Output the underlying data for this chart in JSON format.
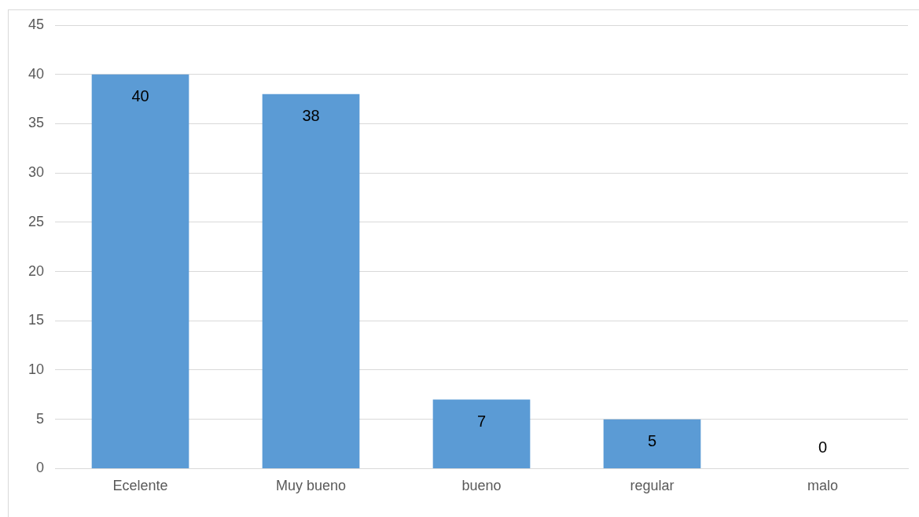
{
  "chart_data": {
    "type": "bar",
    "categories": [
      "Ecelente",
      "Muy bueno",
      "bueno",
      "regular",
      "malo"
    ],
    "values": [
      40,
      38,
      7,
      5,
      0
    ],
    "color": "#5b9bd5",
    "ylim": [
      0,
      45
    ],
    "yticks": [
      0,
      5,
      10,
      15,
      20,
      25,
      30,
      35,
      40,
      45
    ],
    "grid": "y",
    "data_labels": true
  }
}
